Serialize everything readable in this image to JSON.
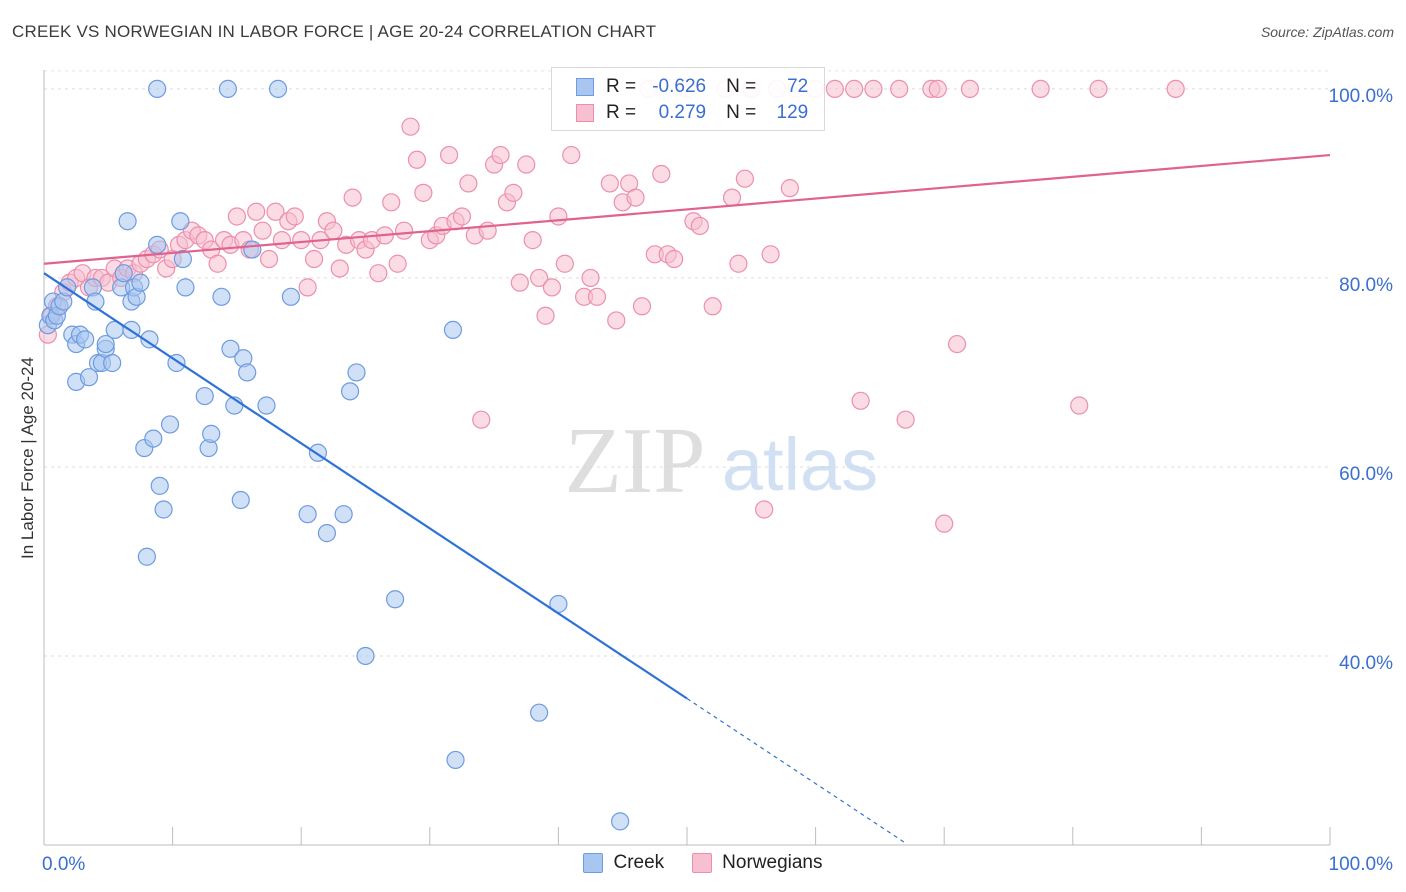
{
  "title": "CREEK VS NORWEGIAN IN LABOR FORCE | AGE 20-24 CORRELATION CHART",
  "source": "Source: ZipAtlas.com",
  "watermark": {
    "zip": "ZIP",
    "atlas": "atlas"
  },
  "legend": {
    "rows": [
      {
        "r_label": "R =",
        "r_value": "-0.626",
        "n_label": "N =",
        "n_value": "72"
      },
      {
        "r_label": "R =",
        "r_value": "0.279",
        "n_label": "N =",
        "n_value": "129"
      }
    ]
  },
  "bottom_legend": [
    "Creek",
    "Norwegians"
  ],
  "colors": {
    "creek_fill": "#a8c6f0",
    "creek_stroke": "#6f9be0",
    "creek_line": "#2f72d6",
    "norw_fill": "#f7bfd0",
    "norw_stroke": "#ec8fae",
    "norw_line": "#e0628e",
    "tick_label": "#3a6fd0"
  },
  "chart_data": {
    "type": "scatter",
    "title": "CREEK VS NORWEGIAN IN LABOR FORCE | AGE 20-24 CORRELATION CHART",
    "xlabel": "",
    "ylabel": "In Labor Force | Age 20-24",
    "xlim": [
      0,
      100
    ],
    "ylim": [
      20,
      102
    ],
    "x_tick_labels": [
      {
        "value": 0,
        "label": "0.0%"
      },
      {
        "value": 100,
        "label": "100.0%"
      }
    ],
    "y_tick_labels": [
      {
        "value": 100,
        "label": "100.0%"
      },
      {
        "value": 80,
        "label": "80.0%"
      },
      {
        "value": 60,
        "label": "60.0%"
      },
      {
        "value": 40,
        "label": "40.0%"
      }
    ],
    "grid": true,
    "series": [
      {
        "name": "Creek",
        "points": [
          [
            0.3,
            75
          ],
          [
            0.5,
            76
          ],
          [
            0.7,
            77.5
          ],
          [
            0.8,
            75.5
          ],
          [
            1.0,
            76
          ],
          [
            1.2,
            77
          ],
          [
            1.5,
            77.5
          ],
          [
            1.8,
            79
          ],
          [
            2.2,
            74
          ],
          [
            2.5,
            73
          ],
          [
            2.5,
            69
          ],
          [
            2.8,
            74
          ],
          [
            3.2,
            73.5
          ],
          [
            3.5,
            69.5
          ],
          [
            3.8,
            79
          ],
          [
            4.0,
            77.5
          ],
          [
            4.2,
            71
          ],
          [
            4.5,
            71
          ],
          [
            4.8,
            72.5
          ],
          [
            4.8,
            73
          ],
          [
            5.3,
            71
          ],
          [
            5.5,
            74.5
          ],
          [
            6.0,
            79
          ],
          [
            6.2,
            80.5
          ],
          [
            6.5,
            86
          ],
          [
            6.8,
            74.5
          ],
          [
            6.8,
            77.5
          ],
          [
            7.0,
            79
          ],
          [
            7.2,
            78
          ],
          [
            7.5,
            79.5
          ],
          [
            7.8,
            62
          ],
          [
            8.2,
            73.5
          ],
          [
            8.0,
            50.5
          ],
          [
            8.5,
            63
          ],
          [
            8.8,
            100
          ],
          [
            8.8,
            83.5
          ],
          [
            9.0,
            58
          ],
          [
            9.3,
            55.5
          ],
          [
            9.8,
            64.5
          ],
          [
            10.3,
            71
          ],
          [
            10.6,
            86
          ],
          [
            10.8,
            82
          ],
          [
            11.0,
            79
          ],
          [
            12.5,
            67.5
          ],
          [
            12.8,
            62
          ],
          [
            13.0,
            63.5
          ],
          [
            13.8,
            78
          ],
          [
            14.3,
            100
          ],
          [
            14.5,
            72.5
          ],
          [
            14.8,
            66.5
          ],
          [
            15.3,
            56.5
          ],
          [
            15.5,
            71.5
          ],
          [
            15.8,
            70
          ],
          [
            16.2,
            83
          ],
          [
            17.3,
            66.5
          ],
          [
            18.2,
            100
          ],
          [
            19.2,
            78
          ],
          [
            20.5,
            55
          ],
          [
            21.3,
            61.5
          ],
          [
            22.0,
            53
          ],
          [
            23.3,
            55
          ],
          [
            23.8,
            68
          ],
          [
            24.3,
            70
          ],
          [
            25.0,
            40
          ],
          [
            27.3,
            46
          ],
          [
            31.8,
            74.5
          ],
          [
            32.0,
            29
          ],
          [
            38.5,
            34
          ],
          [
            40.0,
            45.5
          ],
          [
            44.8,
            22.5
          ]
        ]
      },
      {
        "name": "Norwegians",
        "points": [
          [
            0.3,
            74
          ],
          [
            0.6,
            76
          ],
          [
            1.0,
            77
          ],
          [
            1.5,
            78.5
          ],
          [
            2.0,
            79.5
          ],
          [
            2.5,
            80
          ],
          [
            3.0,
            80.5
          ],
          [
            3.5,
            79
          ],
          [
            4.0,
            80
          ],
          [
            4.5,
            80
          ],
          [
            5.0,
            79.5
          ],
          [
            5.5,
            81
          ],
          [
            6.0,
            80
          ],
          [
            6.5,
            81
          ],
          [
            7.0,
            80.5
          ],
          [
            7.5,
            81.5
          ],
          [
            8.0,
            82
          ],
          [
            8.5,
            82.5
          ],
          [
            9.0,
            83
          ],
          [
            9.5,
            81
          ],
          [
            10.0,
            82
          ],
          [
            10.5,
            83.5
          ],
          [
            11.0,
            84
          ],
          [
            11.5,
            85
          ],
          [
            12.0,
            84.5
          ],
          [
            12.5,
            84
          ],
          [
            13.0,
            83
          ],
          [
            13.5,
            81.5
          ],
          [
            14.0,
            84
          ],
          [
            14.5,
            83.5
          ],
          [
            15.0,
            86.5
          ],
          [
            15.5,
            84
          ],
          [
            16.0,
            83
          ],
          [
            16.5,
            87
          ],
          [
            17.0,
            85
          ],
          [
            17.5,
            82
          ],
          [
            18.0,
            87
          ],
          [
            18.5,
            84
          ],
          [
            19.0,
            86
          ],
          [
            19.5,
            86.5
          ],
          [
            20.0,
            84
          ],
          [
            20.5,
            79
          ],
          [
            21.0,
            82
          ],
          [
            21.5,
            84
          ],
          [
            22.0,
            86
          ],
          [
            22.5,
            85
          ],
          [
            23.0,
            81
          ],
          [
            23.5,
            83.5
          ],
          [
            24.0,
            88.5
          ],
          [
            24.5,
            84
          ],
          [
            25.0,
            83
          ],
          [
            25.5,
            84
          ],
          [
            26.0,
            80.5
          ],
          [
            26.5,
            84.5
          ],
          [
            27.0,
            88
          ],
          [
            27.5,
            81.5
          ],
          [
            28.0,
            85
          ],
          [
            28.5,
            96
          ],
          [
            29.0,
            92.5
          ],
          [
            29.5,
            89
          ],
          [
            30.0,
            84
          ],
          [
            30.5,
            84.5
          ],
          [
            31.0,
            85.5
          ],
          [
            31.5,
            93
          ],
          [
            32.0,
            86
          ],
          [
            32.5,
            86.5
          ],
          [
            33.0,
            90
          ],
          [
            33.5,
            84.5
          ],
          [
            34.0,
            65
          ],
          [
            34.5,
            85
          ],
          [
            35.0,
            92
          ],
          [
            35.5,
            93
          ],
          [
            36.0,
            88
          ],
          [
            36.5,
            89
          ],
          [
            37.0,
            79.5
          ],
          [
            37.5,
            92
          ],
          [
            38.0,
            84
          ],
          [
            38.5,
            80
          ],
          [
            39.0,
            76
          ],
          [
            39.5,
            79
          ],
          [
            40.0,
            86.5
          ],
          [
            40.5,
            81.5
          ],
          [
            41.0,
            93
          ],
          [
            42.0,
            78
          ],
          [
            42.5,
            80
          ],
          [
            43.0,
            78
          ],
          [
            44.0,
            90
          ],
          [
            44.5,
            75.5
          ],
          [
            45.0,
            88
          ],
          [
            45.5,
            90
          ],
          [
            46.0,
            88.5
          ],
          [
            46.5,
            77
          ],
          [
            47.0,
            100
          ],
          [
            47.5,
            82.5
          ],
          [
            48.0,
            91
          ],
          [
            48.5,
            82.5
          ],
          [
            49.0,
            82
          ],
          [
            50.0,
            100
          ],
          [
            50.5,
            86
          ],
          [
            51.0,
            85.5
          ],
          [
            52.0,
            77
          ],
          [
            53.0,
            100
          ],
          [
            53.5,
            88.5
          ],
          [
            54.0,
            81.5
          ],
          [
            54.5,
            90.5
          ],
          [
            55.0,
            100
          ],
          [
            56.0,
            55.5
          ],
          [
            56.5,
            82.5
          ],
          [
            57.0,
            100
          ],
          [
            58.0,
            89.5
          ],
          [
            58.5,
            100
          ],
          [
            60.0,
            100
          ],
          [
            61.5,
            100
          ],
          [
            63.0,
            100
          ],
          [
            63.5,
            67
          ],
          [
            64.5,
            100
          ],
          [
            66.5,
            100
          ],
          [
            67.0,
            65
          ],
          [
            69.0,
            100
          ],
          [
            69.5,
            100
          ],
          [
            70.0,
            54
          ],
          [
            71.0,
            73
          ],
          [
            72.0,
            100
          ],
          [
            77.5,
            100
          ],
          [
            80.5,
            66.5
          ],
          [
            82.0,
            100
          ],
          [
            88.0,
            100
          ]
        ]
      }
    ],
    "trend_lines": [
      {
        "series": "Creek",
        "x": [
          0,
          50
        ],
        "y": [
          80.5,
          35.5
        ],
        "dashed_extension_to_x": 67
      },
      {
        "series": "Norwegians",
        "x": [
          0,
          100
        ],
        "y": [
          81.5,
          93
        ]
      }
    ]
  }
}
